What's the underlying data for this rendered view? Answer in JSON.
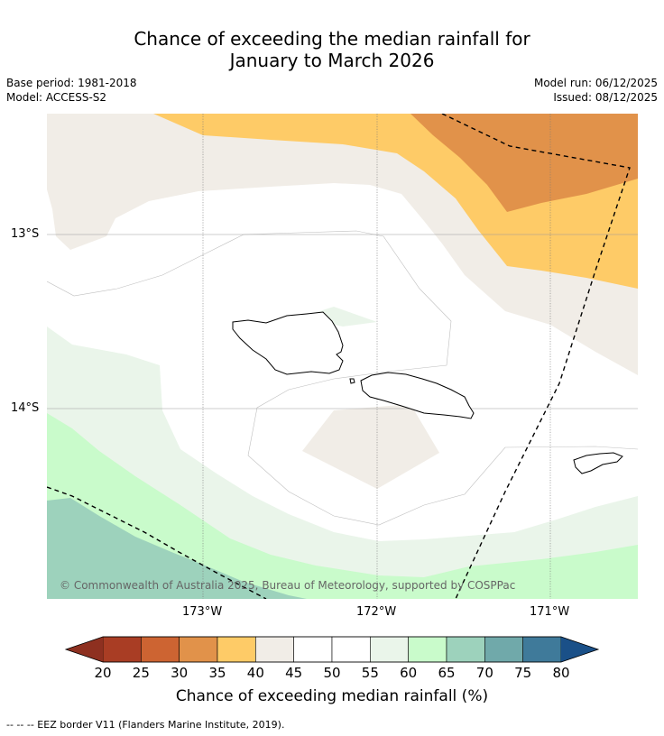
{
  "title": {
    "line1": "Chance of exceeding the median rainfall for",
    "line2": "January to March 2026"
  },
  "meta": {
    "base_period": "Base period: 1981-2018",
    "model": "Model: ACCESS-S2",
    "model_run": "Model run: 06/12/2025",
    "issued": "Issued: 08/12/2025"
  },
  "map": {
    "lat_labels": [
      "13°S",
      "14°S"
    ],
    "lon_labels": [
      "173°W",
      "172°W",
      "171°W"
    ],
    "copyright": "© Commonwealth of Australia 2025, Bureau of Meteorology, supported by COSPPac",
    "islands": [
      "Savai'i",
      "Upolu",
      "Tutuila"
    ]
  },
  "colorbar": {
    "ticks": [
      "20",
      "25",
      "30",
      "35",
      "40",
      "45",
      "50",
      "55",
      "60",
      "65",
      "70",
      "75",
      "80"
    ],
    "colors": [
      "#a93d24",
      "#cd6432",
      "#e1924a",
      "#fecb67",
      "#f1ede7",
      "#ffffff",
      "#ffffff",
      "#eaf5ea",
      "#c9fbcb",
      "#9dd2bc",
      "#70a9aa",
      "#3f7a9a"
    ],
    "under_color": "#8e3020",
    "over_color": "#1a5088",
    "label": "Chance of exceeding median rainfall (%)"
  },
  "footnote": "--  --  -- EEZ border V11 (Flanders Marine Institute, 2019)."
}
